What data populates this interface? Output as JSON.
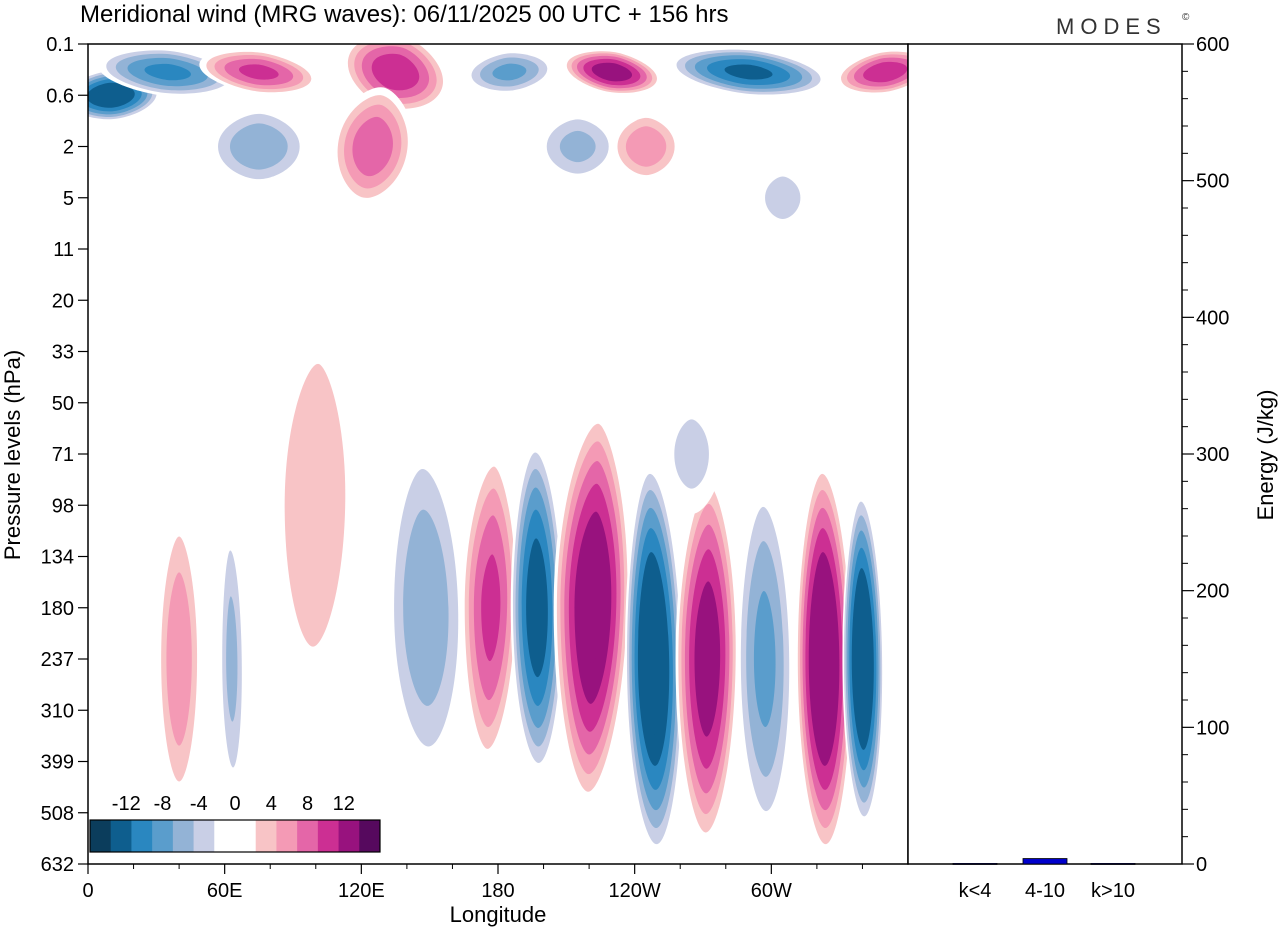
{
  "chart_data": {
    "type": "heatmap",
    "title": "Meridional wind (MRG waves):  06/11/2025  00 UTC  + 156 hrs",
    "brand": "MODES",
    "brand_mark": "©",
    "contour_plot": {
      "xlabel": "Longitude",
      "ylabel": "Pressure levels (hPa)",
      "x_range_deg": [
        0,
        360
      ],
      "x_ticks": [
        {
          "deg": 0,
          "label": "0"
        },
        {
          "deg": 60,
          "label": "60E"
        },
        {
          "deg": 120,
          "label": "120E"
        },
        {
          "deg": 180,
          "label": "180"
        },
        {
          "deg": 240,
          "label": "120W"
        },
        {
          "deg": 300,
          "label": "60W"
        }
      ],
      "y_levels_hpa": [
        "0.1",
        "0.6",
        "2",
        "5",
        "11",
        "20",
        "33",
        "50",
        "71",
        "98",
        "134",
        "180",
        "237",
        "310",
        "399",
        "508",
        "632"
      ],
      "contour_levels": [
        -14,
        -12,
        -10,
        -8,
        -6,
        -4,
        -2,
        2,
        4,
        6,
        8,
        10,
        12,
        14
      ],
      "colorbar_labels": [
        "-12",
        "-8",
        "-4",
        "0",
        "4",
        "8",
        "12"
      ],
      "colors": [
        "#0b3d5c",
        "#0e5e8e",
        "#2a87c0",
        "#5a9dcc",
        "#93b3d6",
        "#c9cfe6",
        "#ffffff",
        "#ffffff",
        "#f8c4c6",
        "#f49ab5",
        "#e466a8",
        "#cc2f93",
        "#98127e",
        "#56095e"
      ],
      "upper_band_wave_centres": [
        {
          "lon_deg": 10,
          "level_hpa": "0.6",
          "value": -14
        },
        {
          "lon_deg": 35,
          "level_hpa": "0.1",
          "value": -10
        },
        {
          "lon_deg": 75,
          "level_hpa": "0.1",
          "value": 10
        },
        {
          "lon_deg": 135,
          "level_hpa": "0.1",
          "value": 11
        },
        {
          "lon_deg": 185,
          "level_hpa": "0.1",
          "value": -8
        },
        {
          "lon_deg": 230,
          "level_hpa": "0.1",
          "value": 13
        },
        {
          "lon_deg": 290,
          "level_hpa": "0.1",
          "value": -12
        },
        {
          "lon_deg": 350,
          "level_hpa": "0.1",
          "value": 11
        },
        {
          "lon_deg": 125,
          "level_hpa": "2",
          "value": 9
        },
        {
          "lon_deg": 75,
          "level_hpa": "2",
          "value": -7
        },
        {
          "lon_deg": 215,
          "level_hpa": "2",
          "value": -6
        },
        {
          "lon_deg": 245,
          "level_hpa": "2",
          "value": 7
        },
        {
          "lon_deg": 305,
          "level_hpa": "5",
          "value": -5
        }
      ],
      "lower_band_wave_centres": [
        {
          "lon_deg": 40,
          "level_hpa": "237",
          "value": 7
        },
        {
          "lon_deg": 63,
          "level_hpa": "237",
          "value": -6
        },
        {
          "lon_deg": 100,
          "level_hpa": "98",
          "value": 5
        },
        {
          "lon_deg": 148,
          "level_hpa": "180",
          "value": -7
        },
        {
          "lon_deg": 177,
          "level_hpa": "180",
          "value": 10
        },
        {
          "lon_deg": 197,
          "level_hpa": "180",
          "value": -13
        },
        {
          "lon_deg": 222,
          "level_hpa": "180",
          "value": 14
        },
        {
          "lon_deg": 248,
          "level_hpa": "237",
          "value": -15
        },
        {
          "lon_deg": 272,
          "level_hpa": "237",
          "value": 13
        },
        {
          "lon_deg": 297,
          "level_hpa": "237",
          "value": -8
        },
        {
          "lon_deg": 323,
          "level_hpa": "237",
          "value": 15
        },
        {
          "lon_deg": 340,
          "level_hpa": "237",
          "value": -15
        },
        {
          "lon_deg": 265,
          "level_hpa": "71",
          "value": -4
        }
      ]
    },
    "energy_plot": {
      "ylabel": "Energy (J/kg)",
      "ylim": [
        0,
        600
      ],
      "y_ticks": [
        "0",
        "100",
        "200",
        "300",
        "400",
        "500",
        "600"
      ],
      "categories": [
        "k<4",
        "4-10",
        "k>10"
      ],
      "values": [
        0.4,
        4.0,
        0.4
      ],
      "bar_color": "#0000cc"
    }
  }
}
